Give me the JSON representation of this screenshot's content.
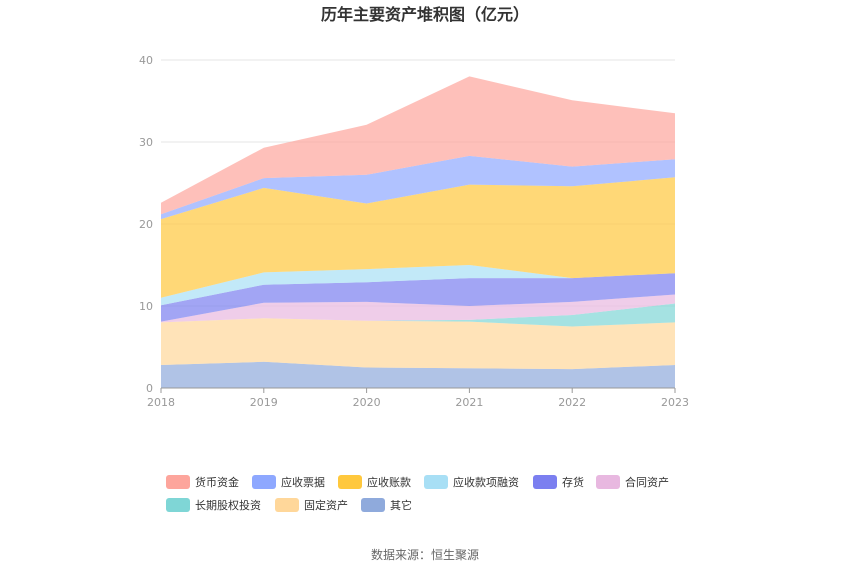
{
  "chart_data": {
    "type": "area",
    "stacked": true,
    "title": "历年主要资产堆积图（亿元）",
    "source": "数据来源：恒生聚源",
    "categories": [
      "2018",
      "2019",
      "2020",
      "2021",
      "2022",
      "2023"
    ],
    "y_ticks": [
      "0",
      "10",
      "20",
      "30",
      "40"
    ],
    "ylim": [
      0,
      40
    ],
    "series": [
      {
        "name": "其它",
        "color": "#8faadc",
        "values": [
          2.8,
          3.2,
          2.5,
          2.4,
          2.3,
          2.8
        ]
      },
      {
        "name": "固定资产",
        "color": "#ffd79a",
        "values": [
          5.2,
          5.3,
          5.7,
          5.7,
          5.2,
          5.2
        ]
      },
      {
        "name": "长期股权投资",
        "color": "#7fd6d6",
        "values": [
          0.0,
          0.0,
          0.0,
          0.2,
          1.4,
          2.3
        ]
      },
      {
        "name": "合同资产",
        "color": "#e8b8e0",
        "values": [
          0.1,
          1.9,
          2.3,
          1.7,
          1.6,
          1.1
        ]
      },
      {
        "name": "存货",
        "color": "#7b7ff0",
        "values": [
          2.0,
          2.2,
          2.4,
          3.4,
          2.9,
          2.6
        ]
      },
      {
        "name": "应收款项融资",
        "color": "#a8dff5",
        "values": [
          0.9,
          1.5,
          1.6,
          1.6,
          0.0,
          0.0
        ]
      },
      {
        "name": "应收账款",
        "color": "#ffc83d",
        "values": [
          9.6,
          10.3,
          8.0,
          9.8,
          11.2,
          11.7
        ]
      },
      {
        "name": "应收票据",
        "color": "#8ea8ff",
        "values": [
          0.6,
          1.2,
          3.5,
          3.5,
          2.4,
          2.2
        ]
      },
      {
        "name": "货币资金",
        "color": "#fda59c",
        "values": [
          1.4,
          3.7,
          6.1,
          9.7,
          8.1,
          5.6
        ]
      }
    ],
    "legend_order": [
      "货币资金",
      "应收票据",
      "应收账款",
      "应收款项融资",
      "存货",
      "合同资产",
      "长期股权投资",
      "固定资产",
      "其它"
    ],
    "legend_position": "bottom"
  }
}
